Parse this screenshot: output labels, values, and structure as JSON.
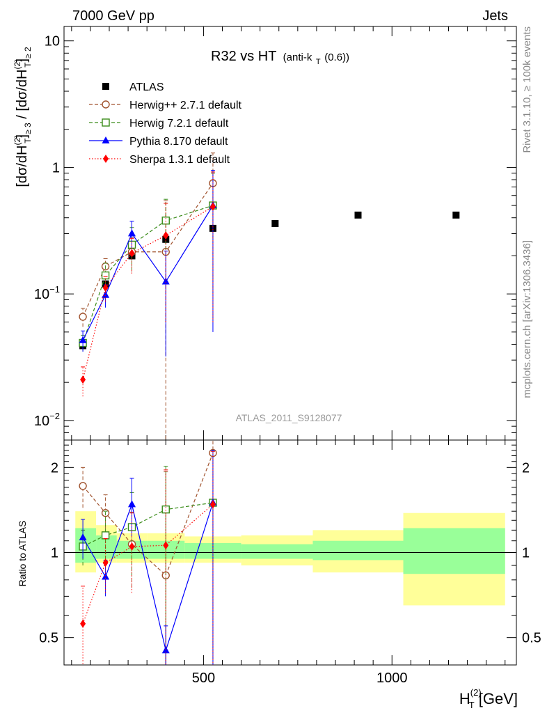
{
  "header": {
    "left": "7000 GeV pp",
    "right": "Jets",
    "side_top": "Rivet 3.1.10, ≥ 100k events",
    "side_bottom": "mcplots.cern.ch [arXiv:1306.3436]",
    "watermark": "ATLAS_2011_S9128077"
  },
  "title": {
    "main": "R32 vs HT",
    "sub_pre": "(anti-k",
    "sub_sub": "T",
    "sub_post": "(0.6))"
  },
  "axes": {
    "y_label_main": "[dσ/dH",
    "y_label_sup": "(2)",
    "y_label_sub": "T",
    "y_label_cond": "≥ 3",
    "y_label_sep": " / [dσ/dH",
    "y_label_cond2": "≥ 2",
    "y_label_close": "]",
    "ratio_label": "Ratio to ATLAS",
    "x_label_main": "H",
    "x_label_sup": "(2)",
    "x_label_sub": "T",
    "x_label_unit": " [GeV]"
  },
  "chart_data": [
    {
      "type": "scatter",
      "panel": "main",
      "yscale": "log",
      "xlim": [
        130,
        1330
      ],
      "ylim": [
        0.007,
        13
      ],
      "x_ticks": [
        500,
        1000
      ],
      "y_ticks": [
        {
          "value": 0.01,
          "base": "10",
          "exp": "−2"
        },
        {
          "value": 0.1,
          "base": "10",
          "exp": "−1"
        },
        {
          "value": 1,
          "base": "1",
          "exp": ""
        },
        {
          "value": 10,
          "base": "10",
          "exp": ""
        }
      ],
      "legend_position": "top-left",
      "reference": {
        "name": "ATLAS",
        "x": [
          180,
          240,
          310,
          400,
          525,
          690,
          910,
          1170
        ],
        "y": [
          0.039,
          0.12,
          0.2,
          0.27,
          0.33,
          0.36,
          0.42,
          0.42
        ]
      },
      "series": [
        {
          "name": "Herwig++ 2.7.1 default",
          "color": "#a0522d",
          "marker": "circle-open",
          "dash": "5,3",
          "x": [
            180,
            240,
            310,
            400,
            525
          ],
          "y": [
            0.066,
            0.165,
            0.215,
            0.215,
            0.75
          ],
          "err": [
            0.011,
            0.025,
            0.065,
            0.33,
            0.55
          ]
        },
        {
          "name": "Herwig 7.2.1 default",
          "color": "#3a8c1a",
          "marker": "square-open",
          "dash": "5,3",
          "x": [
            180,
            240,
            310,
            400,
            525
          ],
          "y": [
            0.041,
            0.14,
            0.245,
            0.38,
            0.5
          ],
          "err": [
            0.006,
            0.035,
            0.09,
            0.18,
            0.4
          ]
        },
        {
          "name": "Pythia 8.170 default",
          "color": "#0000ff",
          "marker": "triangle",
          "dash": "",
          "x": [
            180,
            240,
            310,
            400,
            525
          ],
          "y": [
            0.043,
            0.098,
            0.3,
            0.125,
            0.5
          ],
          "err": [
            0.008,
            0.02,
            0.075,
            0.093,
            0.45
          ]
        },
        {
          "name": "Sherpa 1.3.1 default",
          "color": "#ff0000",
          "marker": "diamond",
          "dash": "1.5,2.5",
          "x": [
            180,
            240,
            310,
            400,
            525
          ],
          "y": [
            0.021,
            0.112,
            0.21,
            0.29,
            0.49
          ],
          "err": [
            0.0055,
            0.025,
            0.065,
            0.23,
            0.43
          ]
        }
      ]
    },
    {
      "type": "scatter",
      "panel": "ratio",
      "ylabel": "Ratio to ATLAS",
      "yscale": "log",
      "xlim": [
        130,
        1330
      ],
      "ylim": [
        0.4,
        2.5
      ],
      "y_ticks": [
        {
          "value": 0.5,
          "label": "0.5"
        },
        {
          "value": 1,
          "label": "1"
        },
        {
          "value": 2,
          "label": "2"
        }
      ],
      "x_ticks": [
        {
          "value": 500,
          "label": "500"
        },
        {
          "value": 1000,
          "label": "1000"
        }
      ],
      "bands": [
        {
          "x0": 160,
          "x1": 215,
          "y_lo": 0.85,
          "y_hi": 1.4,
          "g_lo": 0.92,
          "g_hi": 1.22
        },
        {
          "x0": 215,
          "x1": 270,
          "y_lo": 0.92,
          "y_hi": 1.25,
          "g_lo": 0.95,
          "g_hi": 1.15
        },
        {
          "x0": 270,
          "x1": 350,
          "y_lo": 0.92,
          "y_hi": 1.17,
          "g_lo": 0.95,
          "g_hi": 1.1
        },
        {
          "x0": 350,
          "x1": 450,
          "y_lo": 0.92,
          "y_hi": 1.17,
          "g_lo": 0.95,
          "g_hi": 1.1
        },
        {
          "x0": 450,
          "x1": 600,
          "y_lo": 0.92,
          "y_hi": 1.14,
          "g_lo": 0.95,
          "g_hi": 1.08
        },
        {
          "x0": 600,
          "x1": 790,
          "y_lo": 0.9,
          "y_hi": 1.15,
          "g_lo": 0.95,
          "g_hi": 1.07
        },
        {
          "x0": 790,
          "x1": 1030,
          "y_lo": 0.85,
          "y_hi": 1.2,
          "g_lo": 0.94,
          "g_hi": 1.1
        },
        {
          "x0": 1030,
          "x1": 1300,
          "y_lo": 0.65,
          "y_hi": 1.38,
          "g_lo": 0.84,
          "g_hi": 1.22
        }
      ],
      "series": [
        {
          "name": "Herwig++ 2.7.1 default",
          "color": "#a0522d",
          "marker": "circle-open",
          "dash": "5,3",
          "x": [
            180,
            240,
            310,
            400,
            525
          ],
          "y": [
            1.72,
            1.38,
            1.07,
            0.83,
            2.25
          ],
          "err_lo": [
            0.28,
            0.22,
            0.32,
            0.55,
            1.8
          ],
          "err_hi": [
            0.28,
            0.22,
            0.32,
            1.1,
            0.4
          ]
        },
        {
          "name": "Herwig 7.2.1 default",
          "color": "#3a8c1a",
          "marker": "square-open",
          "dash": "5,3",
          "x": [
            180,
            240,
            310,
            400,
            525
          ],
          "y": [
            1.05,
            1.15,
            1.23,
            1.42,
            1.5
          ],
          "err_lo": [
            0.15,
            0.25,
            0.4,
            1.0,
            1.1
          ],
          "err_hi": [
            0.15,
            0.25,
            0.4,
            0.6,
            0.8
          ]
        },
        {
          "name": "Pythia 8.170 default",
          "color": "#0000ff",
          "marker": "triangle",
          "dash": "",
          "x": [
            180,
            240,
            310,
            400,
            525
          ],
          "y": [
            1.13,
            0.82,
            1.48,
            0.45,
            1.5
          ],
          "err_lo": [
            0.18,
            0.12,
            0.35,
            0.1,
            1.1
          ],
          "err_hi": [
            0.18,
            0.12,
            0.35,
            0.1,
            0.8
          ]
        },
        {
          "name": "Sherpa 1.3.1 default",
          "color": "#ff0000",
          "marker": "diamond",
          "dash": "1.5,2.5",
          "x": [
            180,
            240,
            310,
            400,
            525
          ],
          "y": [
            0.56,
            0.92,
            1.05,
            1.06,
            1.48
          ],
          "err_lo": [
            0.2,
            0.2,
            0.33,
            0.7,
            1.1
          ],
          "err_hi": [
            0.2,
            0.2,
            0.33,
            0.9,
            0.8
          ]
        }
      ]
    }
  ]
}
